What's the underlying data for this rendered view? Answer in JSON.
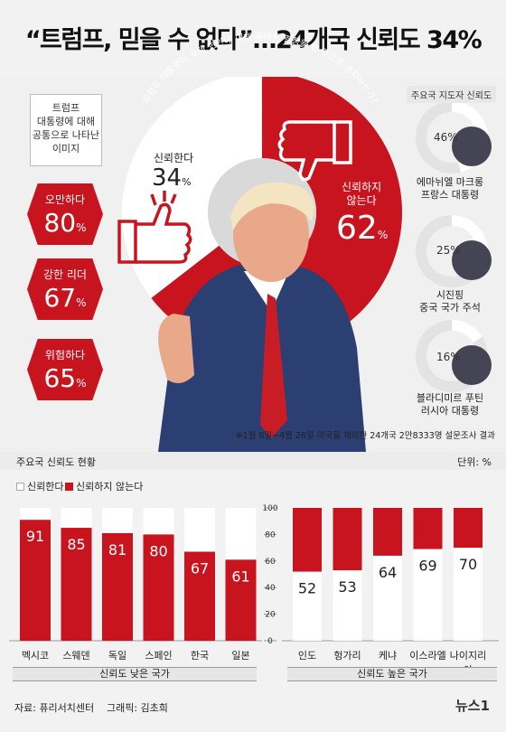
{
  "title": "“트럼프, 믿을 수 없다”…24개국 신뢰도 34%",
  "image_box": {
    "heading_lines": [
      "트럼프",
      "대통령에 대해",
      "공통으로 나타난",
      "이미지"
    ],
    "items": [
      {
        "label": "오만하다",
        "value": "80",
        "unit": "%"
      },
      {
        "label": "강한 리더",
        "value": "67",
        "unit": "%"
      },
      {
        "label": "위험하다",
        "value": "65",
        "unit": "%"
      }
    ]
  },
  "center_donut": {
    "question": "트럼프 대통령이 국제 현안에 대해 올바른 결정을 할 것으로 생각하는가?",
    "trust_label": "신뢰한다",
    "trust_value": "34",
    "distrust_label_lines": [
      "신뢰하지",
      "않는다"
    ],
    "distrust_value": "62",
    "unit": "%"
  },
  "leaders": {
    "title": "주요국 지도자 신뢰도",
    "items": [
      {
        "value": "46%",
        "share": 46,
        "name": "에마뉘엘 마크롱",
        "role": "프랑스 대통령"
      },
      {
        "value": "25%",
        "share": 25,
        "name": "시진핑",
        "role": "중국 국가 주석"
      },
      {
        "value": "16%",
        "share": 16,
        "name": "블라디미르 푸틴",
        "role": "러시아 대통령"
      }
    ]
  },
  "survey_note": "※1월 8일~4월 26일 미국을 제외한 24개국 2만8333명 설문조사 결과",
  "bottom": {
    "title": "주요국 신뢰도 현황",
    "unit": "단위: %",
    "legend_trust": "신뢰한다",
    "legend_distrust": "신뢰하지 않는다",
    "group_low": "신뢰도 낮은 국가",
    "group_high": "신뢰도 높은 국가"
  },
  "chart_data": {
    "type": "bar",
    "stacked": true,
    "ylim": [
      0,
      100
    ],
    "yticks": [
      0,
      20,
      40,
      60,
      80,
      100
    ],
    "low_trust": {
      "categories": [
        "멕시코",
        "스웨덴",
        "독일",
        "스페인",
        "한국",
        "일본"
      ],
      "series": [
        {
          "name": "신뢰하지 않는다",
          "values": [
            91,
            85,
            81,
            80,
            67,
            61
          ]
        }
      ]
    },
    "high_trust": {
      "categories": [
        "인도",
        "헝가리",
        "케냐",
        "이스라엘",
        "나이지리아"
      ],
      "series": [
        {
          "name": "신뢰한다",
          "values": [
            52,
            53,
            64,
            69,
            70
          ]
        }
      ]
    },
    "colors": {
      "trust": "#ffffff",
      "distrust": "#c8141e"
    }
  },
  "footer": {
    "source": "자료: 퓨리서치센터",
    "graphic": "그래픽: 김초희",
    "logo": "뉴스1"
  }
}
